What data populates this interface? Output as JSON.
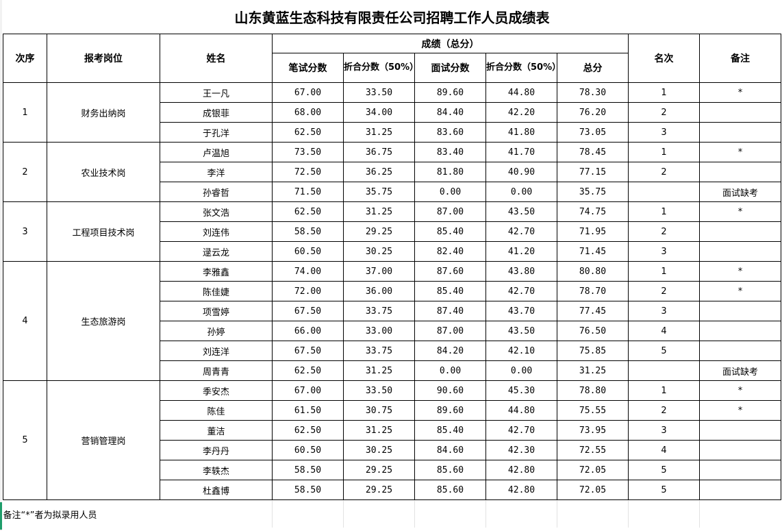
{
  "title": "山东黄蓝生态科技有限责任公司招聘工作人员成绩表",
  "headers": {
    "seq": "次序",
    "position": "报考岗位",
    "name": "姓名",
    "score_group": "成绩（总分）",
    "written": "笔试分数",
    "written_50": "折合分数（50%）",
    "interview": "面试分数",
    "interview_50": "折合分数（50%）",
    "total": "总分",
    "rank": "名次",
    "remark": "备注"
  },
  "groups": [
    {
      "seq": "1",
      "position": "财务出纳岗",
      "rows": [
        [
          "王一凡",
          "67.00",
          "33.50",
          "89.60",
          "44.80",
          "78.30",
          "1",
          "*"
        ],
        [
          "成银菲",
          "68.00",
          "34.00",
          "84.40",
          "42.20",
          "76.20",
          "2",
          ""
        ],
        [
          "于孔洋",
          "62.50",
          "31.25",
          "83.60",
          "41.80",
          "73.05",
          "3",
          ""
        ]
      ]
    },
    {
      "seq": "2",
      "position": "农业技术岗",
      "rows": [
        [
          "卢温旭",
          "73.50",
          "36.75",
          "83.40",
          "41.70",
          "78.45",
          "1",
          "*"
        ],
        [
          "李洋",
          "72.50",
          "36.25",
          "81.80",
          "40.90",
          "77.15",
          "2",
          ""
        ],
        [
          "孙睿哲",
          "71.50",
          "35.75",
          "0.00",
          "0.00",
          "35.75",
          "",
          "面试缺考"
        ]
      ]
    },
    {
      "seq": "3",
      "position": "工程项目技术岗",
      "rows": [
        [
          "张文浩",
          "62.50",
          "31.25",
          "87.00",
          "43.50",
          "74.75",
          "1",
          "*"
        ],
        [
          "刘连伟",
          "58.50",
          "29.25",
          "85.40",
          "42.70",
          "71.95",
          "2",
          ""
        ],
        [
          "逯云龙",
          "60.50",
          "30.25",
          "82.40",
          "41.20",
          "71.45",
          "3",
          ""
        ]
      ]
    },
    {
      "seq": "4",
      "position": "生态旅游岗",
      "rows": [
        [
          "李雅鑫",
          "74.00",
          "37.00",
          "87.60",
          "43.80",
          "80.80",
          "1",
          "*"
        ],
        [
          "陈佳婕",
          "72.00",
          "36.00",
          "85.40",
          "42.70",
          "78.70",
          "2",
          "*"
        ],
        [
          "项雪婷",
          "67.50",
          "33.75",
          "87.40",
          "43.70",
          "77.45",
          "3",
          ""
        ],
        [
          "孙婷",
          "66.00",
          "33.00",
          "87.00",
          "43.50",
          "76.50",
          "4",
          ""
        ],
        [
          "刘连洋",
          "67.50",
          "33.75",
          "84.20",
          "42.10",
          "75.85",
          "5",
          ""
        ],
        [
          "周青青",
          "62.50",
          "31.25",
          "0.00",
          "0.00",
          "31.25",
          "",
          "面试缺考"
        ]
      ]
    },
    {
      "seq": "5",
      "position": "营销管理岗",
      "rows": [
        [
          "季安杰",
          "67.00",
          "33.50",
          "90.60",
          "45.30",
          "78.80",
          "1",
          "*"
        ],
        [
          "陈佳",
          "61.50",
          "30.75",
          "89.60",
          "44.80",
          "75.55",
          "2",
          "*"
        ],
        [
          "董洁",
          "62.50",
          "31.25",
          "85.40",
          "42.70",
          "73.95",
          "3",
          ""
        ],
        [
          "李丹丹",
          "60.50",
          "30.25",
          "84.60",
          "42.30",
          "72.55",
          "4",
          ""
        ],
        [
          "李轶杰",
          "58.50",
          "29.25",
          "85.60",
          "42.80",
          "72.05",
          "5",
          ""
        ],
        [
          "杜鑫博",
          "58.50",
          "29.25",
          "85.60",
          "42.80",
          "72.05",
          "5",
          ""
        ]
      ]
    }
  ],
  "footnote": "备注“*”者为拟录用人员"
}
